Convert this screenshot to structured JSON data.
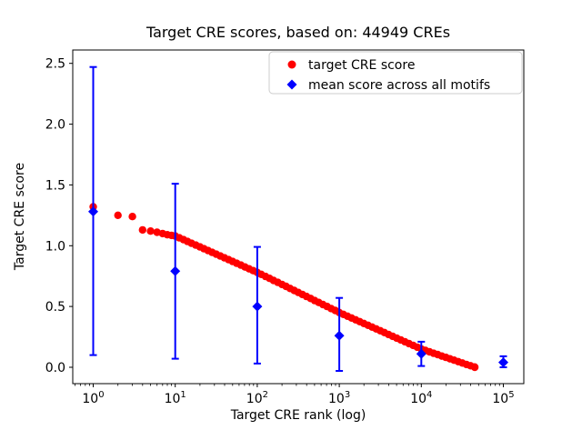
{
  "figure": {
    "background": "#ffffff"
  },
  "legend": {
    "items": [
      {
        "label": "target CRE score",
        "marker": "circle-icon",
        "color": "#ff0000"
      },
      {
        "label": "mean score across all motifs",
        "marker": "diamond-icon",
        "color": "#0000ff"
      }
    ]
  },
  "chart_data": {
    "type": "scatter",
    "title": "Target CRE scores, based on: 44949 CREs",
    "xlabel": "Target CRE rank (log)",
    "ylabel": "Target CRE score",
    "x_scale": "log",
    "xlim_log10": [
      -0.25,
      5.25
    ],
    "ylim": [
      -0.135,
      2.61
    ],
    "x_ticks_exponents": [
      0,
      1,
      2,
      3,
      4,
      5
    ],
    "y_ticks": [
      0.0,
      0.5,
      1.0,
      1.5,
      2.0,
      2.5
    ],
    "grid": false,
    "legend_position": "upper right inside axes",
    "series": [
      {
        "name": "target CRE score",
        "type": "scatter",
        "marker": "circle",
        "color": "#ff0000",
        "points": [
          [
            1,
            1.32
          ],
          [
            2,
            1.25
          ],
          [
            3,
            1.24
          ],
          [
            4,
            1.13
          ],
          [
            5,
            1.12
          ],
          [
            6,
            1.11
          ],
          [
            7,
            1.1
          ],
          [
            8,
            1.09
          ],
          [
            9,
            1.085
          ],
          [
            10,
            1.08
          ],
          [
            11.2,
            1.065
          ],
          [
            12.6,
            1.05
          ],
          [
            14.1,
            1.035
          ],
          [
            15.8,
            1.02
          ],
          [
            17.8,
            1.005
          ],
          [
            20,
            0.99
          ],
          [
            22.4,
            0.975
          ],
          [
            25.1,
            0.96
          ],
          [
            28.2,
            0.945
          ],
          [
            31.6,
            0.93
          ],
          [
            35.5,
            0.915
          ],
          [
            39.8,
            0.9
          ],
          [
            44.7,
            0.885
          ],
          [
            50.1,
            0.87
          ],
          [
            56.2,
            0.855
          ],
          [
            63.1,
            0.84
          ],
          [
            70.8,
            0.825
          ],
          [
            79.4,
            0.81
          ],
          [
            89.1,
            0.795
          ],
          [
            100,
            0.78
          ],
          [
            112,
            0.764
          ],
          [
            126,
            0.747
          ],
          [
            141,
            0.731
          ],
          [
            158,
            0.714
          ],
          [
            178,
            0.698
          ],
          [
            200,
            0.681
          ],
          [
            224,
            0.665
          ],
          [
            251,
            0.648
          ],
          [
            282,
            0.632
          ],
          [
            316,
            0.615
          ],
          [
            355,
            0.599
          ],
          [
            398,
            0.582
          ],
          [
            447,
            0.566
          ],
          [
            501,
            0.549
          ],
          [
            562,
            0.533
          ],
          [
            631,
            0.516
          ],
          [
            708,
            0.5
          ],
          [
            794,
            0.483
          ],
          [
            891,
            0.467
          ],
          [
            1000,
            0.45
          ],
          [
            1122,
            0.435
          ],
          [
            1259,
            0.42
          ],
          [
            1413,
            0.405
          ],
          [
            1585,
            0.39
          ],
          [
            1778,
            0.375
          ],
          [
            1995,
            0.36
          ],
          [
            2239,
            0.345
          ],
          [
            2512,
            0.33
          ],
          [
            2818,
            0.315
          ],
          [
            3162,
            0.3
          ],
          [
            3548,
            0.285
          ],
          [
            3981,
            0.27
          ],
          [
            4467,
            0.255
          ],
          [
            5012,
            0.24
          ],
          [
            5623,
            0.225
          ],
          [
            6310,
            0.21
          ],
          [
            7079,
            0.195
          ],
          [
            7943,
            0.18
          ],
          [
            8913,
            0.165
          ],
          [
            10000,
            0.15
          ],
          [
            11220,
            0.138
          ],
          [
            12589,
            0.127
          ],
          [
            14125,
            0.115
          ],
          [
            15849,
            0.104
          ],
          [
            17783,
            0.092
          ],
          [
            19953,
            0.081
          ],
          [
            22387,
            0.069
          ],
          [
            25119,
            0.058
          ],
          [
            28184,
            0.046
          ],
          [
            31623,
            0.035
          ],
          [
            35481,
            0.023
          ],
          [
            39811,
            0.012
          ],
          [
            44668,
            0.002
          ],
          [
            44949,
            0.0
          ]
        ]
      },
      {
        "name": "mean score across all motifs",
        "type": "errorbar",
        "marker": "diamond",
        "color": "#0000ff",
        "points": [
          {
            "x": 1,
            "mean": 1.28,
            "lo": 0.1,
            "hi": 2.47
          },
          {
            "x": 10,
            "mean": 0.79,
            "lo": 0.07,
            "hi": 1.51
          },
          {
            "x": 100,
            "mean": 0.5,
            "lo": 0.03,
            "hi": 0.99
          },
          {
            "x": 1000,
            "mean": 0.26,
            "lo": -0.03,
            "hi": 0.57
          },
          {
            "x": 10000,
            "mean": 0.11,
            "lo": 0.01,
            "hi": 0.21
          },
          {
            "x": 100000,
            "mean": 0.04,
            "lo": 0.0,
            "hi": 0.09
          }
        ]
      }
    ]
  }
}
